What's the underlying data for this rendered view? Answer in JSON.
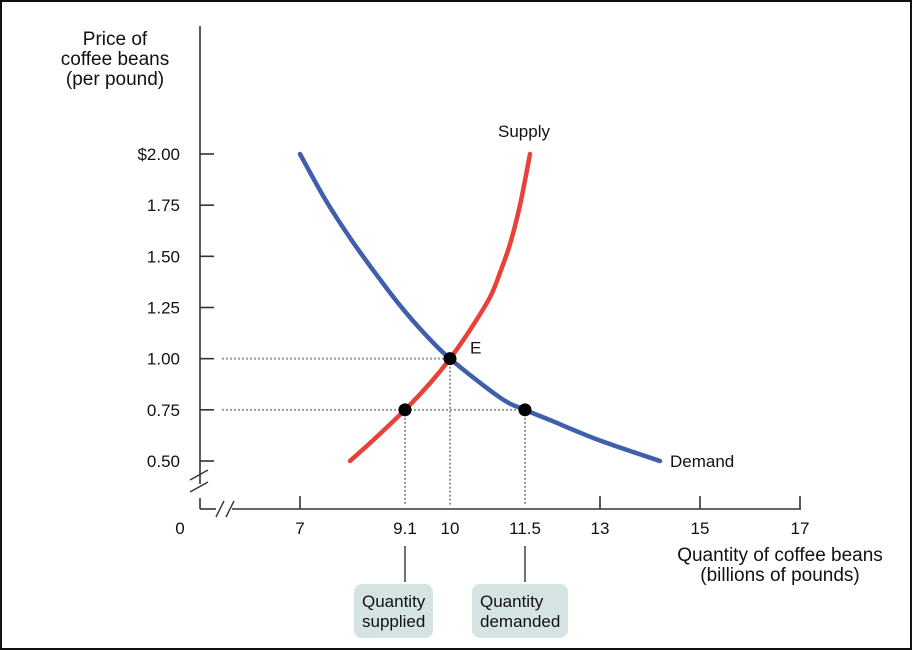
{
  "chart_data": {
    "type": "line",
    "ylabel": [
      "Price of",
      "coffee beans",
      "(per pound)"
    ],
    "xlabel": [
      "Quantity of coffee beans",
      "(billions of pounds)"
    ],
    "y_ticks": [
      {
        "value": 2.0,
        "label": "$2.00"
      },
      {
        "value": 1.75,
        "label": "1.75"
      },
      {
        "value": 1.5,
        "label": "1.50"
      },
      {
        "value": 1.25,
        "label": "1.25"
      },
      {
        "value": 1.0,
        "label": "1.00"
      },
      {
        "value": 0.75,
        "label": "0.75"
      },
      {
        "value": 0.5,
        "label": "0.50"
      }
    ],
    "x_ticks": [
      {
        "value": 7,
        "label": "7"
      },
      {
        "value": 9.1,
        "label": "9.1"
      },
      {
        "value": 10,
        "label": "10"
      },
      {
        "value": 11.5,
        "label": "11.5"
      },
      {
        "value": 13,
        "label": "13"
      },
      {
        "value": 15,
        "label": "15"
      },
      {
        "value": 17,
        "label": "17"
      }
    ],
    "origin_label": "0",
    "xlim": [
      7,
      17
    ],
    "ylim": [
      0.5,
      2.0
    ],
    "series": [
      {
        "name": "Supply",
        "color": "#e8413a",
        "x": [
          8.0,
          8.5,
          9.1,
          9.6,
          10.0,
          10.4,
          10.8,
          11.0,
          11.2,
          11.4,
          11.6
        ],
        "y": [
          0.5,
          0.61,
          0.75,
          0.88,
          1.0,
          1.14,
          1.3,
          1.42,
          1.56,
          1.75,
          2.0
        ]
      },
      {
        "name": "Demand",
        "color": "#3f5fad",
        "x": [
          7.0,
          7.5,
          8.0,
          8.5,
          9.0,
          9.5,
          10.0,
          11.0,
          11.5,
          12.0,
          13.0,
          14.2
        ],
        "y": [
          2.0,
          1.78,
          1.59,
          1.42,
          1.26,
          1.12,
          1.0,
          0.81,
          0.75,
          0.7,
          0.6,
          0.5
        ]
      }
    ],
    "points": [
      {
        "x": 10.0,
        "y": 1.0,
        "label": "E"
      },
      {
        "x": 9.1,
        "y": 0.75,
        "label": ""
      },
      {
        "x": 11.5,
        "y": 0.75,
        "label": ""
      }
    ],
    "guides": [
      {
        "type": "h",
        "y": 1.0,
        "x_to": 10.0
      },
      {
        "type": "h",
        "y": 0.75,
        "x_to": 11.5
      },
      {
        "type": "v",
        "x": 9.1,
        "y_to": 0.75
      },
      {
        "type": "v",
        "x": 10.0,
        "y_to": 1.0
      },
      {
        "type": "v",
        "x": 11.5,
        "y_to": 0.75
      }
    ],
    "callouts": [
      {
        "x": 9.1,
        "lines": [
          "Quantity",
          "supplied"
        ]
      },
      {
        "x": 11.5,
        "lines": [
          "Quantity",
          "demanded"
        ]
      }
    ]
  }
}
